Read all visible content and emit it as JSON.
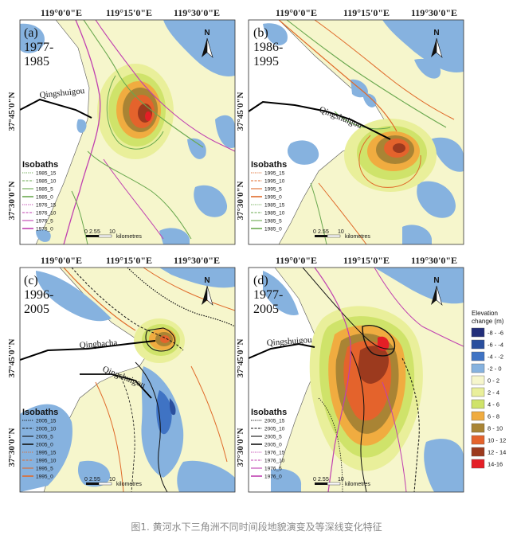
{
  "colors": {
    "bg": "#f6f6cc",
    "water": "#86b2df",
    "land": "#ffffff",
    "iso_15_recent": "#111111",
    "iso_1985": "#6aa84f",
    "iso_1976": "#c040b0",
    "iso_1995": "#e06a2a"
  },
  "axes": {
    "lon_labels": [
      "119°0'0\"E",
      "119°15'0\"E",
      "119°30'0\"E"
    ],
    "lat_labels": [
      "37°45'0\"N",
      "37°30'0\"N"
    ]
  },
  "panels": [
    {
      "id": "a",
      "label": "(a)",
      "period_line1": "1977-",
      "period_line2": "1985",
      "place": "Qingshuigou",
      "isobaths_title": "Isobaths",
      "isobaths": [
        {
          "name": "1985_15",
          "color": "#6aa84f",
          "style": "dot"
        },
        {
          "name": "1985_10",
          "color": "#6aa84f",
          "style": "dash"
        },
        {
          "name": "1985_5",
          "color": "#6aa84f",
          "style": "thin"
        },
        {
          "name": "1985_0",
          "color": "#6aa84f",
          "style": "solid"
        },
        {
          "name": "1976_15",
          "color": "#c040b0",
          "style": "dot"
        },
        {
          "name": "1976_10",
          "color": "#c040b0",
          "style": "dash"
        },
        {
          "name": "1976_5",
          "color": "#c040b0",
          "style": "thin"
        },
        {
          "name": "1976_0",
          "color": "#c040b0",
          "style": "solid"
        }
      ],
      "scale": {
        "ticks": [
          "0",
          "2.5",
          "5",
          "10"
        ],
        "unit": "kilometres"
      },
      "north": "N"
    },
    {
      "id": "b",
      "label": "(b)",
      "period_line1": "1986-",
      "period_line2": "1995",
      "place": "Qingshuigou",
      "isobaths_title": "Isobaths",
      "isobaths": [
        {
          "name": "1995_15",
          "color": "#e06a2a",
          "style": "dot"
        },
        {
          "name": "1995_10",
          "color": "#e06a2a",
          "style": "dash"
        },
        {
          "name": "1995_5",
          "color": "#e06a2a",
          "style": "thin"
        },
        {
          "name": "1995_0",
          "color": "#e06a2a",
          "style": "solid"
        },
        {
          "name": "1985_15",
          "color": "#6aa84f",
          "style": "dot"
        },
        {
          "name": "1985_10",
          "color": "#6aa84f",
          "style": "dash"
        },
        {
          "name": "1985_5",
          "color": "#6aa84f",
          "style": "thin"
        },
        {
          "name": "1985_0",
          "color": "#6aa84f",
          "style": "solid"
        }
      ],
      "scale": {
        "ticks": [
          "0",
          "2.5",
          "5",
          "10"
        ],
        "unit": "kilometres"
      },
      "north": "N"
    },
    {
      "id": "c",
      "label": "(c)",
      "period_line1": "1996-",
      "period_line2": "2005",
      "place": "Qingshuigou",
      "place2": "Qingbacha",
      "isobaths_title": "Isobaths",
      "isobaths": [
        {
          "name": "2005_15",
          "color": "#111111",
          "style": "dot"
        },
        {
          "name": "2005_10",
          "color": "#111111",
          "style": "dash"
        },
        {
          "name": "2005_5",
          "color": "#111111",
          "style": "thin"
        },
        {
          "name": "2005_0",
          "color": "#111111",
          "style": "solid"
        },
        {
          "name": "1995_15",
          "color": "#e06a2a",
          "style": "dot"
        },
        {
          "name": "1995_10",
          "color": "#e06a2a",
          "style": "dash"
        },
        {
          "name": "1995_5",
          "color": "#e06a2a",
          "style": "thin"
        },
        {
          "name": "1995_0",
          "color": "#e06a2a",
          "style": "solid"
        }
      ],
      "scale": {
        "ticks": [
          "0",
          "2.5",
          "5",
          "10"
        ],
        "unit": "kilometres"
      },
      "north": "N"
    },
    {
      "id": "d",
      "label": "(d)",
      "period_line1": "1977-",
      "period_line2": "2005",
      "place": "Qingshuigou",
      "isobaths_title": "Isobaths",
      "isobaths": [
        {
          "name": "2005_15",
          "color": "#111111",
          "style": "dot"
        },
        {
          "name": "2005_10",
          "color": "#111111",
          "style": "dash"
        },
        {
          "name": "2005_5",
          "color": "#111111",
          "style": "thin"
        },
        {
          "name": "2005_0",
          "color": "#111111",
          "style": "solid"
        },
        {
          "name": "1976_15",
          "color": "#c040b0",
          "style": "dot"
        },
        {
          "name": "1976_10",
          "color": "#c040b0",
          "style": "dash"
        },
        {
          "name": "1976_5",
          "color": "#c040b0",
          "style": "thin"
        },
        {
          "name": "1976_0",
          "color": "#c040b0",
          "style": "solid"
        }
      ],
      "scale": {
        "ticks": [
          "0",
          "2.5",
          "5",
          "10"
        ],
        "unit": "kilometres"
      },
      "north": "N"
    }
  ],
  "elevation_legend": {
    "title_line1": "Elevation",
    "title_line2": "change (m)",
    "classes": [
      {
        "label": "-8 - -6",
        "color": "#232f7a"
      },
      {
        "label": "-6 - -4",
        "color": "#2a4f9e"
      },
      {
        "label": "-4 - -2",
        "color": "#3f73c4"
      },
      {
        "label": "-2 - 0",
        "color": "#86b2df"
      },
      {
        "label": "0 - 2",
        "color": "#f6f6cc"
      },
      {
        "label": "2 - 4",
        "color": "#e9ef9a"
      },
      {
        "label": "4 - 6",
        "color": "#cfe36a"
      },
      {
        "label": "6 - 8",
        "color": "#f0ac40"
      },
      {
        "label": "8 - 10",
        "color": "#a98434"
      },
      {
        "label": "10 - 12",
        "color": "#e4632c"
      },
      {
        "label": "12 - 14",
        "color": "#9c3a1e"
      },
      {
        "label": "14-16",
        "color": "#e41e26"
      }
    ]
  },
  "caption": "图1. 黄河水下三角洲不同时间段地貌演变及等深线变化特征"
}
